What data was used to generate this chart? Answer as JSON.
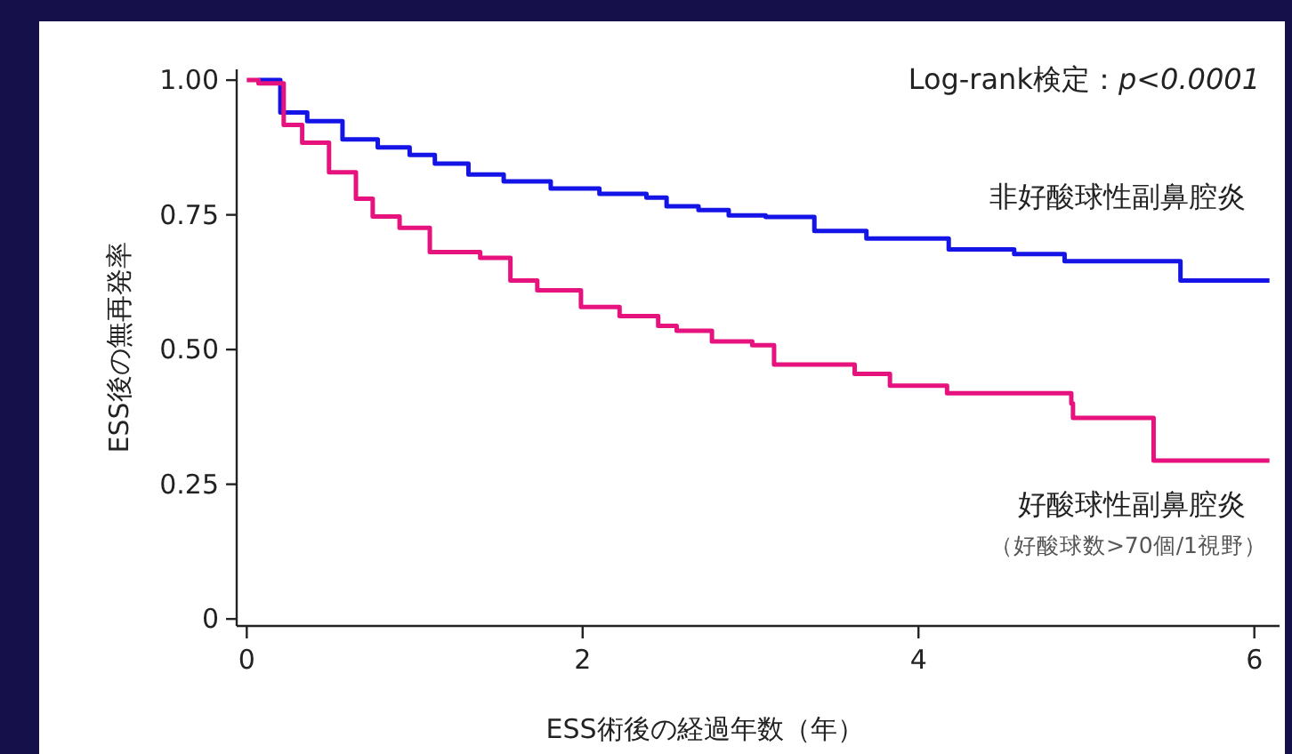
{
  "chart_data": {
    "type": "step",
    "xlabel": "ESS術後の経過年数（年）",
    "ylabel": "ESS後の無再発率",
    "xlim": [
      -0.06,
      6.15
    ],
    "ylim": [
      -0.013,
      1.02
    ],
    "xticks": [
      0,
      2,
      4,
      6
    ],
    "yticks": [
      0,
      {
        "value": 0.25,
        "label": "0.25"
      },
      {
        "value": 0.5,
        "label": "0.50"
      },
      {
        "value": 0.75,
        "label": "0.75"
      },
      {
        "value": 1,
        "label": "1.00"
      }
    ],
    "grid": false,
    "series": [
      {
        "name": "非好酸球性副鼻腔炎",
        "color": "#1414e6",
        "x": [
          0.07,
          0.2,
          0.36,
          0.57,
          0.78,
          0.97,
          1.12,
          1.32,
          1.53,
          1.81,
          2.1,
          2.38,
          2.5,
          2.69,
          2.87,
          3.09,
          3.38,
          3.69,
          4.18,
          4.57,
          4.87,
          5.56,
          6.09
        ],
        "values": [
          1.0,
          0.94,
          0.924,
          0.89,
          0.875,
          0.861,
          0.845,
          0.825,
          0.812,
          0.799,
          0.789,
          0.782,
          0.766,
          0.759,
          0.749,
          0.746,
          0.72,
          0.706,
          0.686,
          0.677,
          0.664,
          0.628,
          0.628
        ]
      },
      {
        "name": "好酸球性副鼻腔炎",
        "color": "#e6137f",
        "x": [
          0,
          0.07,
          0.22,
          0.33,
          0.49,
          0.65,
          0.75,
          0.91,
          1.09,
          1.39,
          1.57,
          1.73,
          1.99,
          2.22,
          2.45,
          2.56,
          2.77,
          3.01,
          3.14,
          3.62,
          3.83,
          4.17,
          4.91,
          4.92,
          5.4,
          6.09
        ],
        "values": [
          1.0,
          0.994,
          0.917,
          0.884,
          0.829,
          0.78,
          0.747,
          0.726,
          0.681,
          0.67,
          0.628,
          0.61,
          0.579,
          0.562,
          0.544,
          0.535,
          0.515,
          0.508,
          0.472,
          0.455,
          0.433,
          0.419,
          0.4,
          0.373,
          0.294,
          0.294
        ]
      }
    ],
    "annotations": [
      "Log-rank検定：p<0.0001",
      "（好酸球数>70個/1視野）"
    ]
  }
}
